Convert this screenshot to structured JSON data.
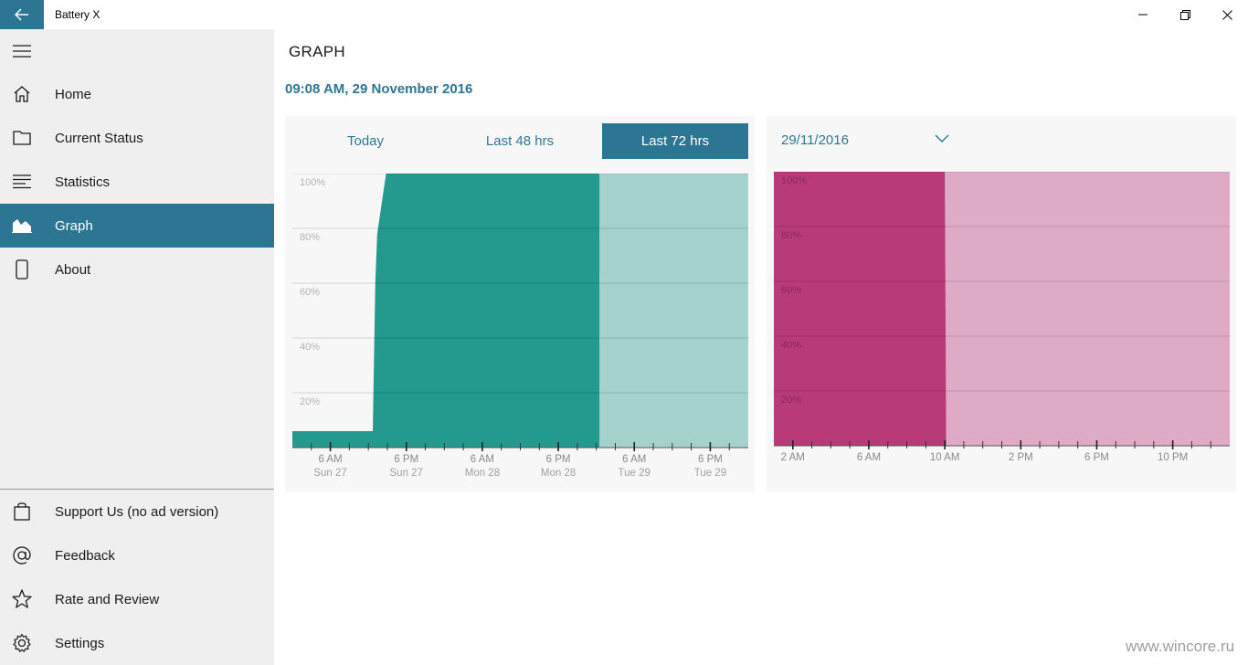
{
  "window": {
    "title": "Battery X"
  },
  "sidebar": {
    "items": [
      {
        "label": "Home",
        "icon": "home-icon"
      },
      {
        "label": "Current Status",
        "icon": "folder-icon"
      },
      {
        "label": "Statistics",
        "icon": "list-icon"
      },
      {
        "label": "Graph",
        "icon": "area-chart-icon",
        "active": true
      },
      {
        "label": "About",
        "icon": "phone-icon"
      }
    ],
    "bottom_items": [
      {
        "label": "Support Us (no ad version)",
        "icon": "shopping-bag-icon"
      },
      {
        "label": "Feedback",
        "icon": "at-sign-icon"
      },
      {
        "label": "Rate and Review",
        "icon": "star-icon"
      },
      {
        "label": "Settings",
        "icon": "gear-icon"
      }
    ]
  },
  "main": {
    "title": "GRAPH",
    "timestamp": "09:08 AM, 29 November 2016",
    "tabs": [
      {
        "label": "Today"
      },
      {
        "label": "Last 48 hrs"
      },
      {
        "label": "Last 72 hrs",
        "active": true
      }
    ],
    "date_selector": {
      "value": "29/11/2016"
    }
  },
  "colors": {
    "accent": "#2d7693",
    "left_chart_fill": "#239a8d",
    "left_chart_future": "#a5d1cd",
    "right_chart_fill": "#b83a78",
    "right_chart_future": "#dfaac6"
  },
  "chart_data": [
    {
      "type": "area",
      "y_ticks": [
        "100%",
        "80%",
        "60%",
        "40%",
        "20%"
      ],
      "ylim": [
        0,
        100
      ],
      "x_tick_labels": [
        {
          "time": "6 AM",
          "day": "Sun 27"
        },
        {
          "time": "6 PM",
          "day": "Sun 27"
        },
        {
          "time": "6 AM",
          "day": "Mon 28"
        },
        {
          "time": "6 PM",
          "day": "Mon 28"
        },
        {
          "time": "6 AM",
          "day": "Tue 29"
        },
        {
          "time": "6 PM",
          "day": "Tue 29"
        }
      ],
      "xlim_hours": [
        0,
        72
      ],
      "series": [
        {
          "x_hours": [
            0,
            12.7,
            13.1,
            13.4,
            14.8,
            48.5
          ],
          "values": [
            6,
            6,
            60,
            78,
            100,
            100
          ]
        }
      ],
      "now_hours": 48.5
    },
    {
      "type": "area",
      "y_ticks": [
        "100%",
        "80%",
        "60%",
        "40%",
        "20%"
      ],
      "ylim": [
        0,
        100
      ],
      "x_tick_labels": [
        "2 AM",
        "6 AM",
        "10 AM",
        "2 PM",
        "6 PM",
        "10 PM"
      ],
      "xlim_hours": [
        0,
        24
      ],
      "series": [
        {
          "x_hours": [
            0,
            9.0
          ],
          "values": [
            100,
            100
          ]
        }
      ],
      "now_hours": 9.0
    }
  ],
  "watermark": "www.wincore.ru"
}
